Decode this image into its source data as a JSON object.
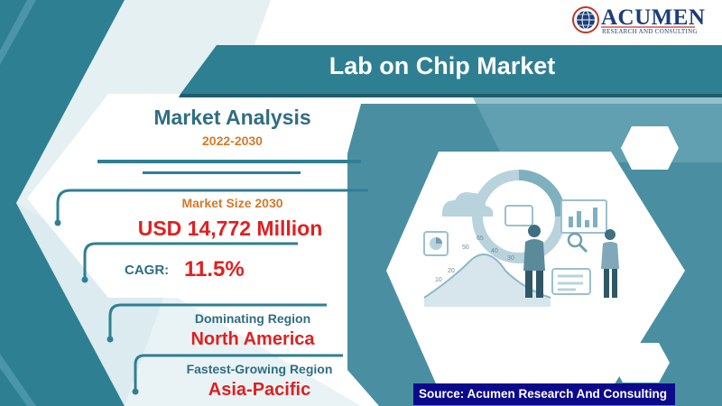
{
  "brand": {
    "name": "ACUMEN",
    "tagline": "RESEARCH AND CONSULTING",
    "colors": {
      "teal": "#2f7f93",
      "dark_teal": "#1f5c6e",
      "navy": "#1a3e7a"
    }
  },
  "title": "Lab on Chip Market",
  "analysis": {
    "heading": "Market Analysis",
    "period": "2022-2030"
  },
  "market_size": {
    "label": "Market Size 2030",
    "value": "USD 14,772 Million"
  },
  "cagr": {
    "label": "CAGR:",
    "value": "11.5%"
  },
  "dominating_region": {
    "label": "Dominating Region",
    "value": "North America"
  },
  "fastest_growing_region": {
    "label": "Fastest-Growing Region",
    "value": "Asia-Pacific"
  },
  "illustration": {
    "numbers": [
      "65",
      "50",
      "40",
      "30",
      "20",
      "10"
    ]
  },
  "source": "Source: Acumen Research And Consulting",
  "colors": {
    "accent_orange": "#d4792b",
    "value_red": "#e02020",
    "label_teal": "#2f6e82",
    "source_bg": "#0c0a8a"
  }
}
